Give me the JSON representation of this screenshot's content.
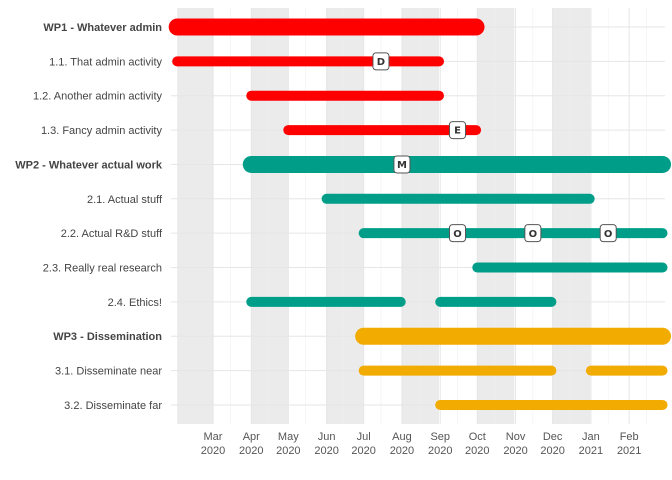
{
  "chart_data": {
    "type": "gantt",
    "colors": {
      "WP1": "#ff0000",
      "WP2": "#009e89",
      "WP3": "#f2ab00"
    },
    "x_ticks": [
      {
        "month": "Mar",
        "year": "2020",
        "date": "2020-03-01"
      },
      {
        "month": "Apr",
        "year": "2020",
        "date": "2020-04-01"
      },
      {
        "month": "May",
        "year": "2020",
        "date": "2020-05-01"
      },
      {
        "month": "Jun",
        "year": "2020",
        "date": "2020-06-01"
      },
      {
        "month": "Jul",
        "year": "2020",
        "date": "2020-07-01"
      },
      {
        "month": "Aug",
        "year": "2020",
        "date": "2020-08-01"
      },
      {
        "month": "Sep",
        "year": "2020",
        "date": "2020-09-01"
      },
      {
        "month": "Oct",
        "year": "2020",
        "date": "2020-10-01"
      },
      {
        "month": "Nov",
        "year": "2020",
        "date": "2020-11-01"
      },
      {
        "month": "Dec",
        "year": "2020",
        "date": "2020-12-01"
      },
      {
        "month": "Jan",
        "year": "2021",
        "date": "2021-01-01"
      },
      {
        "month": "Feb",
        "year": "2021",
        "date": "2021-02-01"
      }
    ],
    "xlim": [
      "2020-01-27",
      "2021-03-02"
    ],
    "shaded_bands": [
      [
        "2020-02-01",
        "2020-03-31"
      ],
      [
        "2020-04-01",
        "2020-05-31"
      ],
      [
        "2020-06-01",
        "2020-07-31"
      ],
      [
        "2020-08-01",
        "2020-09-30"
      ],
      [
        "2020-10-01",
        "2020-11-30"
      ],
      [
        "2020-12-01",
        "2021-01-31"
      ]
    ],
    "grid": true,
    "tasks": [
      {
        "label": "WP1 - Whatever admin",
        "wp": "WP1",
        "level": "wp",
        "start": "2020-02-01",
        "end": "2020-09-30",
        "milestones": []
      },
      {
        "label": "1.1. That admin activity",
        "wp": "WP1",
        "level": "task",
        "start": "2020-02-01",
        "end": "2020-08-31",
        "milestones": [
          {
            "label": "D",
            "date": "2020-07-15"
          }
        ]
      },
      {
        "label": "1.2. Another admin activity",
        "wp": "WP1",
        "level": "task",
        "start": "2020-04-01",
        "end": "2020-08-31",
        "milestones": []
      },
      {
        "label": "1.3. Fancy admin activity",
        "wp": "WP1",
        "level": "task",
        "start": "2020-05-01",
        "end": "2020-09-30",
        "milestones": [
          {
            "label": "E",
            "date": "2020-09-15"
          }
        ]
      },
      {
        "label": "WP2 - Whatever actual work",
        "wp": "WP2",
        "level": "wp",
        "start": "2020-04-01",
        "end": "2021-02-28",
        "milestones": [
          {
            "label": "M",
            "date": "2020-08-01"
          }
        ]
      },
      {
        "label": "2.1. Actual stuff",
        "wp": "WP2",
        "level": "task",
        "start": "2020-06-01",
        "end": "2020-12-31",
        "milestones": []
      },
      {
        "label": "2.2. Actual R&D stuff",
        "wp": "WP2",
        "level": "task",
        "start": "2020-07-01",
        "end": "2021-02-28",
        "milestones": [
          {
            "label": "O",
            "date": "2020-09-15"
          },
          {
            "label": "O",
            "date": "2020-11-15"
          },
          {
            "label": "O",
            "date": "2021-01-15"
          }
        ]
      },
      {
        "label": "2.3. Really real research",
        "wp": "WP2",
        "level": "task",
        "start": "2020-10-01",
        "end": "2021-02-28",
        "milestones": []
      },
      {
        "label": "2.4. Ethics!",
        "wp": "WP2",
        "level": "task",
        "start": "2020-04-01",
        "end": "2020-07-31",
        "milestones": []
      },
      {
        "label": "2.4. Ethics!",
        "wp": "WP2",
        "level": "task",
        "start": "2020-09-01",
        "end": "2020-11-30",
        "milestones": []
      },
      {
        "label": "WP3 - Dissemination",
        "wp": "WP3",
        "level": "wp",
        "start": "2020-07-01",
        "end": "2021-02-28",
        "milestones": []
      },
      {
        "label": "3.1. Disseminate near",
        "wp": "WP3",
        "level": "task",
        "start": "2020-07-01",
        "end": "2020-11-30",
        "milestones": []
      },
      {
        "label": "3.1. Disseminate near",
        "wp": "WP3",
        "level": "task",
        "start": "2021-01-01",
        "end": "2021-02-28",
        "milestones": []
      },
      {
        "label": "3.2. Disseminate far",
        "wp": "WP3",
        "level": "task",
        "start": "2020-09-01",
        "end": "2021-02-28",
        "milestones": []
      }
    ]
  }
}
